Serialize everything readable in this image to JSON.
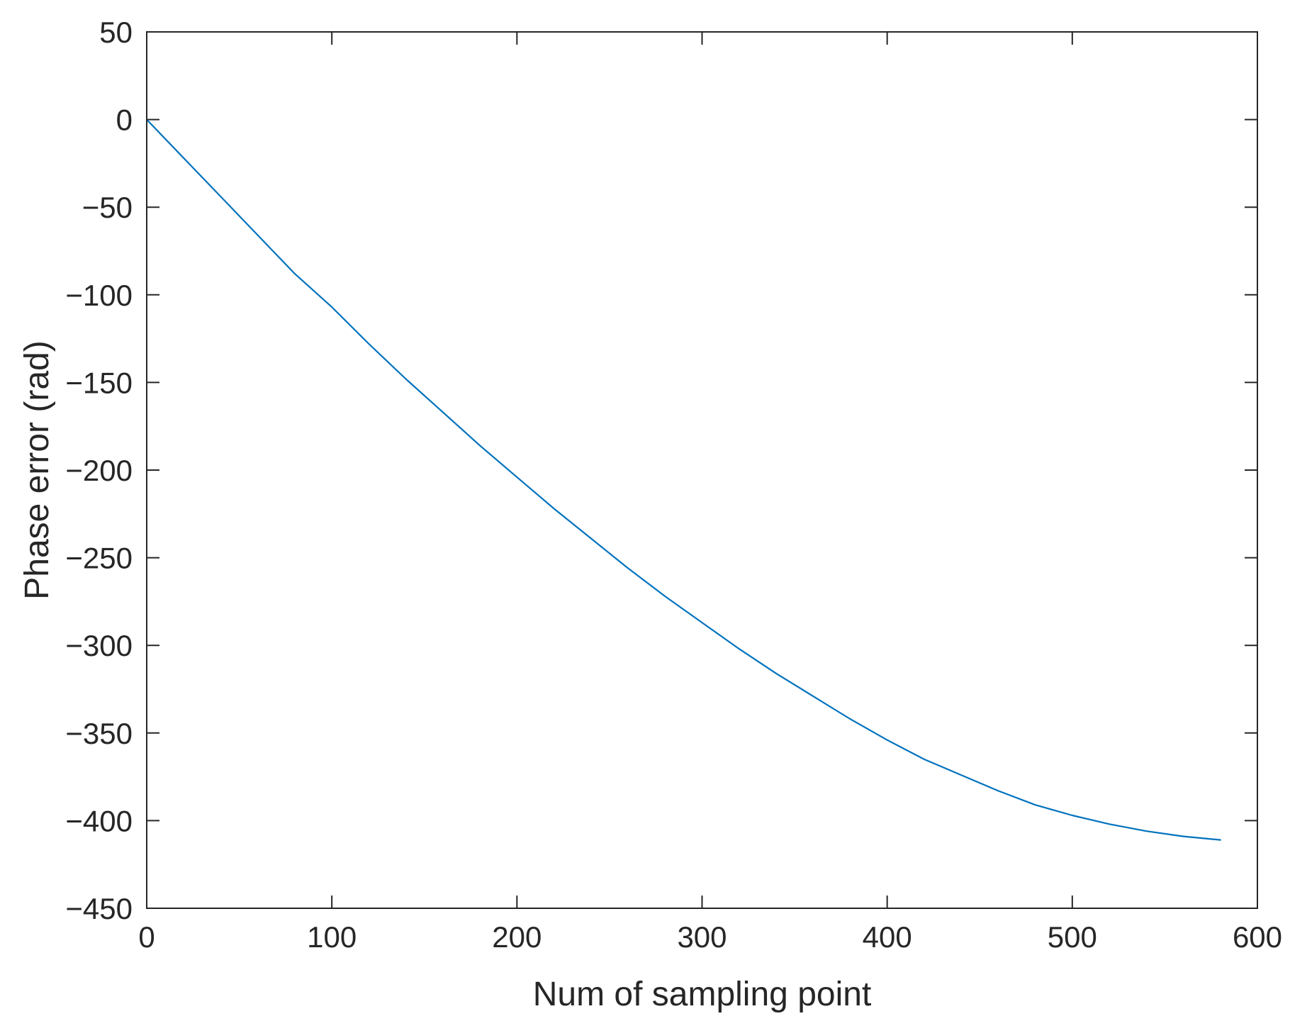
{
  "chart_data": {
    "type": "line",
    "title": "",
    "xlabel": "Num of sampling point",
    "ylabel": "Phase error (rad)",
    "xlim": [
      0,
      600
    ],
    "ylim": [
      -450,
      50
    ],
    "x_ticks": [
      "0",
      "100",
      "200",
      "300",
      "400",
      "500",
      "600"
    ],
    "y_ticks": [
      "50",
      "0",
      "−50",
      "−100",
      "−150",
      "−200",
      "−250",
      "−300",
      "−350",
      "−400",
      "−450"
    ],
    "x_tick_values": [
      0,
      100,
      200,
      300,
      400,
      500,
      600
    ],
    "y_tick_values": [
      50,
      0,
      -50,
      -100,
      -150,
      -200,
      -250,
      -300,
      -350,
      -400,
      -450
    ],
    "grid": false,
    "box": true,
    "series": [
      {
        "color": "#0072BD",
        "x": [
          0,
          20,
          40,
          60,
          80,
          100,
          120,
          140,
          160,
          180,
          200,
          220,
          240,
          260,
          280,
          300,
          320,
          340,
          360,
          380,
          400,
          420,
          440,
          460,
          480,
          500,
          520,
          540,
          560,
          580
        ],
        "y": [
          0,
          -22,
          -44,
          -66,
          -88,
          -107,
          -128,
          -148,
          -167,
          -186,
          -204,
          -222,
          -239,
          -256,
          -272,
          -287,
          -302,
          -316,
          -329,
          -342,
          -354,
          -365,
          -374,
          -383,
          -391,
          -397,
          -402,
          -406,
          -409,
          -411
        ]
      }
    ]
  }
}
